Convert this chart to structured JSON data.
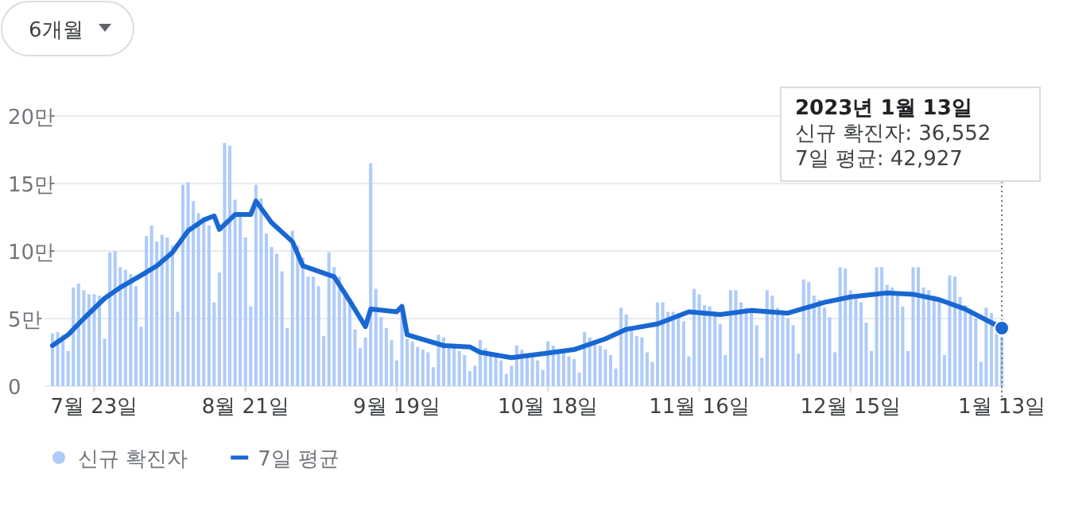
{
  "chart_data": {
    "type": "bar",
    "annotations": [
      "6개월",
      "2023년 1월 13일",
      "신규 확진자: 36,552",
      "7일 평균: 42,927"
    ],
    "xlim": [
      "2022-07-15",
      "2023-01-13"
    ],
    "xticks": [
      {
        "value": "2022-07-23",
        "label": "7월 23일"
      },
      {
        "value": "2022-08-21",
        "label": "8월 21일"
      },
      {
        "value": "2022-09-19",
        "label": "9월 19일"
      },
      {
        "value": "2022-10-18",
        "label": "10월 18일"
      },
      {
        "value": "2022-11-16",
        "label": "11월 16일"
      },
      {
        "value": "2022-12-15",
        "label": "12월 15일"
      },
      {
        "value": "2023-01-13",
        "label": "1월 13일"
      }
    ],
    "ylim": [
      0,
      20
    ],
    "yticks": [
      0,
      {
        "value": 5,
        "label": "5만"
      },
      {
        "value": 10,
        "label": "10만"
      },
      {
        "value": 15,
        "label": "15만"
      },
      {
        "value": 20,
        "label": "20만"
      }
    ],
    "grid": "y",
    "legend": "bottom left",
    "ref_lines": [
      {
        "axis": "x",
        "value": "2023-01-13",
        "color": "#757575",
        "line_style": "dotted"
      }
    ],
    "series": [
      {
        "name": "신규 확진자",
        "color": "#aecbfa",
        "x": [
          "2022-07-15",
          "2022-07-16",
          "2022-07-17",
          "2022-07-18",
          "2022-07-19",
          "2022-07-20",
          "2022-07-21",
          "2022-07-22",
          "2022-07-23",
          "2022-07-24",
          "2022-07-25",
          "2022-07-26",
          "2022-07-27",
          "2022-07-28",
          "2022-07-29",
          "2022-07-30",
          "2022-07-31",
          "2022-08-01",
          "2022-08-02",
          "2022-08-03",
          "2022-08-04",
          "2022-08-05",
          "2022-08-06",
          "2022-08-07",
          "2022-08-08",
          "2022-08-09",
          "2022-08-10",
          "2022-08-11",
          "2022-08-12",
          "2022-08-13",
          "2022-08-14",
          "2022-08-15",
          "2022-08-16",
          "2022-08-17",
          "2022-08-18",
          "2022-08-19",
          "2022-08-20",
          "2022-08-21",
          "2022-08-22",
          "2022-08-23",
          "2022-08-24",
          "2022-08-25",
          "2022-08-26",
          "2022-08-27",
          "2022-08-28",
          "2022-08-29",
          "2022-08-30",
          "2022-08-31",
          "2022-09-01",
          "2022-09-02",
          "2022-09-03",
          "2022-09-04",
          "2022-09-05",
          "2022-09-06",
          "2022-09-07",
          "2022-09-08",
          "2022-09-09",
          "2022-09-10",
          "2022-09-11",
          "2022-09-12",
          "2022-09-13",
          "2022-09-14",
          "2022-09-15",
          "2022-09-16",
          "2022-09-17",
          "2022-09-18",
          "2022-09-19",
          "2022-09-20",
          "2022-09-21",
          "2022-09-22",
          "2022-09-23",
          "2022-09-24",
          "2022-09-25",
          "2022-09-26",
          "2022-09-27",
          "2022-09-28",
          "2022-09-29",
          "2022-09-30",
          "2022-10-01",
          "2022-10-02",
          "2022-10-03",
          "2022-10-04",
          "2022-10-05",
          "2022-10-06",
          "2022-10-07",
          "2022-10-08",
          "2022-10-09",
          "2022-10-10",
          "2022-10-11",
          "2022-10-12",
          "2022-10-13",
          "2022-10-14",
          "2022-10-15",
          "2022-10-16",
          "2022-10-17",
          "2022-10-18",
          "2022-10-19",
          "2022-10-20",
          "2022-10-21",
          "2022-10-22",
          "2022-10-23",
          "2022-10-24",
          "2022-10-25",
          "2022-10-26",
          "2022-10-27",
          "2022-10-28",
          "2022-10-29",
          "2022-10-30",
          "2022-10-31",
          "2022-11-01",
          "2022-11-02",
          "2022-11-03",
          "2022-11-04",
          "2022-11-05",
          "2022-11-06",
          "2022-11-07",
          "2022-11-08",
          "2022-11-09",
          "2022-11-10",
          "2022-11-11",
          "2022-11-12",
          "2022-11-13",
          "2022-11-14",
          "2022-11-15",
          "2022-11-16",
          "2022-11-17",
          "2022-11-18",
          "2022-11-19",
          "2022-11-20",
          "2022-11-21",
          "2022-11-22",
          "2022-11-23",
          "2022-11-24",
          "2022-11-25",
          "2022-11-26",
          "2022-11-27",
          "2022-11-28",
          "2022-11-29",
          "2022-11-30",
          "2022-12-01",
          "2022-12-02",
          "2022-12-03",
          "2022-12-04",
          "2022-12-05",
          "2022-12-06",
          "2022-12-07",
          "2022-12-08",
          "2022-12-09",
          "2022-12-10",
          "2022-12-11",
          "2022-12-12",
          "2022-12-13",
          "2022-12-14",
          "2022-12-15",
          "2022-12-16",
          "2022-12-17",
          "2022-12-18",
          "2022-12-19",
          "2022-12-20",
          "2022-12-21",
          "2022-12-22",
          "2022-12-23",
          "2022-12-24",
          "2022-12-25",
          "2022-12-26",
          "2022-12-27",
          "2022-12-28",
          "2022-12-29",
          "2022-12-30",
          "2022-12-31",
          "2023-01-01",
          "2023-01-02",
          "2023-01-03",
          "2023-01-04",
          "2023-01-05",
          "2023-01-06",
          "2023-01-07",
          "2023-01-08",
          "2023-01-09",
          "2023-01-10",
          "2023-01-11",
          "2023-01-12",
          "2023-01-13"
        ],
        "values": [
          3.9,
          4.0,
          3.8,
          2.6,
          7.3,
          7.6,
          7.1,
          6.8,
          6.8,
          6.7,
          3.5,
          9.9,
          10.0,
          8.8,
          8.6,
          8.3,
          7.4,
          4.4,
          11.1,
          11.9,
          10.7,
          11.2,
          11.0,
          10.4,
          5.5,
          14.9,
          15.1,
          13.7,
          12.8,
          12.5,
          11.9,
          6.2,
          8.4,
          18.0,
          17.8,
          13.8,
          12.8,
          11.0,
          5.9,
          14.9,
          13.9,
          11.3,
          10.3,
          9.8,
          8.5,
          4.3,
          11.5,
          10.4,
          9.5,
          8.1,
          8.1,
          7.4,
          3.7,
          9.9,
          8.8,
          8.1,
          7.1,
          6.4,
          4.2,
          2.8,
          3.6,
          16.5,
          7.2,
          5.1,
          4.3,
          3.4,
          1.9,
          5.7,
          3.5,
          3.3,
          2.9,
          2.7,
          2.5,
          1.4,
          3.8,
          3.6,
          3.0,
          2.9,
          2.6,
          2.3,
          1.1,
          1.5,
          3.4,
          2.8,
          2.5,
          2.3,
          1.9,
          0.9,
          1.5,
          3.0,
          2.7,
          2.3,
          2.1,
          1.9,
          1.2,
          3.3,
          3.0,
          2.7,
          2.5,
          2.2,
          2.0,
          1.0,
          4.0,
          3.6,
          3.4,
          3.0,
          2.7,
          2.3,
          1.3,
          5.8,
          5.3,
          4.2,
          3.7,
          3.6,
          2.5,
          1.8,
          6.2,
          6.2,
          5.5,
          5.5,
          5.4,
          4.8,
          2.2,
          7.2,
          6.8,
          6.0,
          5.9,
          5.5,
          4.6,
          2.3,
          7.1,
          7.1,
          6.2,
          5.8,
          5.5,
          4.5,
          2.1,
          7.1,
          6.7,
          5.8,
          5.5,
          5.0,
          4.5,
          2.4,
          7.9,
          7.7,
          6.7,
          6.4,
          5.8,
          5.1,
          2.5,
          8.8,
          8.7,
          7.1,
          6.5,
          6.2,
          4.7,
          2.6,
          8.8,
          8.8,
          7.5,
          7.3,
          6.8,
          5.9,
          2.6,
          8.8,
          8.8,
          7.3,
          7.1,
          6.7,
          6.3,
          2.3,
          8.2,
          8.1,
          6.6,
          6.0,
          5.7,
          5.0,
          1.8,
          5.8,
          5.4,
          4.8,
          3.6552
        ]
      },
      {
        "name": "7일 평균",
        "type": "line",
        "color": "#1967d2",
        "x": [
          "2022-07-15",
          "2022-07-18",
          "2022-07-21",
          "2022-07-25",
          "2022-07-28",
          "2022-08-01",
          "2022-08-04",
          "2022-08-07",
          "2022-08-10",
          "2022-08-13",
          "2022-08-15",
          "2022-08-16",
          "2022-08-19",
          "2022-08-22",
          "2022-08-23",
          "2022-08-26",
          "2022-08-30",
          "2022-09-01",
          "2022-09-07",
          "2022-09-10",
          "2022-09-13",
          "2022-09-14",
          "2022-09-19",
          "2022-09-20",
          "2022-09-21",
          "2022-09-28",
          "2022-10-03",
          "2022-10-05",
          "2022-10-11",
          "2022-10-17",
          "2022-10-23",
          "2022-10-29",
          "2022-11-02",
          "2022-11-08",
          "2022-11-14",
          "2022-11-20",
          "2022-11-26",
          "2022-12-03",
          "2022-12-10",
          "2022-12-15",
          "2022-12-22",
          "2022-12-27",
          "2023-01-01",
          "2023-01-06",
          "2023-01-13"
        ],
        "values": [
          3.0,
          3.8,
          5.0,
          6.5,
          7.3,
          8.2,
          8.9,
          9.9,
          11.5,
          12.3,
          12.6,
          11.6,
          12.7,
          12.7,
          13.7,
          12.1,
          10.7,
          8.9,
          8.1,
          6.3,
          4.4,
          5.7,
          5.5,
          5.9,
          3.8,
          3.0,
          2.9,
          2.5,
          2.1,
          2.4,
          2.7,
          3.5,
          4.2,
          4.6,
          5.5,
          5.3,
          5.6,
          5.4,
          6.2,
          6.6,
          6.9,
          6.8,
          6.4,
          5.7,
          4.2927
        ]
      }
    ]
  }
}
